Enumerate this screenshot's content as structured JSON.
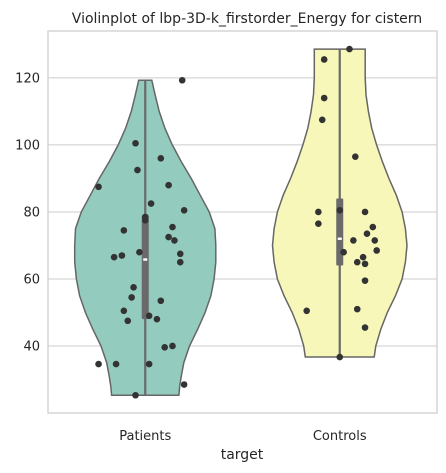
{
  "chart_data": {
    "type": "violin",
    "title": "Violinplot of lbp-3D-k_firstorder_Energy for cistern",
    "xlabel": "target",
    "ylabel": "",
    "ylim": [
      20,
      134
    ],
    "yticks": [
      40,
      60,
      80,
      100,
      120
    ],
    "grid": true,
    "categories": [
      "Patients",
      "Controls"
    ],
    "colors": [
      "#94cbbf",
      "#f7f7b9"
    ],
    "series": [
      {
        "category": "Patients",
        "min": 25.3,
        "max": 119.3,
        "q1": 48,
        "median": 65.8,
        "q3": 79,
        "density": [
          [
            25.3,
            41
          ],
          [
            28,
            42
          ],
          [
            31,
            44
          ],
          [
            35,
            47
          ],
          [
            40,
            54
          ],
          [
            45,
            64
          ],
          [
            50,
            73
          ],
          [
            55,
            80
          ],
          [
            60,
            84
          ],
          [
            65,
            86
          ],
          [
            70,
            86
          ],
          [
            75,
            85
          ],
          [
            80,
            78
          ],
          [
            85,
            67
          ],
          [
            90,
            56
          ],
          [
            95,
            44
          ],
          [
            100,
            33
          ],
          [
            105,
            24
          ],
          [
            110,
            17
          ],
          [
            115,
            12
          ],
          [
            119.3,
            8
          ]
        ],
        "points": [
          [
            -0.05,
            25.3
          ],
          [
            -0.24,
            34.6
          ],
          [
            -0.15,
            34.6
          ],
          [
            0.02,
            34.6
          ],
          [
            0.2,
            28.5
          ],
          [
            0.1,
            39.6
          ],
          [
            0.14,
            40
          ],
          [
            0.06,
            48
          ],
          [
            -0.09,
            47.5
          ],
          [
            0.02,
            49
          ],
          [
            -0.11,
            50.5
          ],
          [
            -0.07,
            54.5
          ],
          [
            0.08,
            53.5
          ],
          [
            -0.06,
            57.5
          ],
          [
            -0.16,
            66.5
          ],
          [
            -0.12,
            67
          ],
          [
            0.18,
            65
          ],
          [
            0.18,
            67.5
          ],
          [
            -0.03,
            68
          ],
          [
            0.15,
            71.5
          ],
          [
            0.12,
            72.5
          ],
          [
            -0.11,
            74.5
          ],
          [
            0.14,
            75.5
          ],
          [
            0.0,
            77.5
          ],
          [
            0.0,
            78.5
          ],
          [
            0.2,
            80.5
          ],
          [
            0.03,
            82.5
          ],
          [
            -0.24,
            87.5
          ],
          [
            0.12,
            88
          ],
          [
            -0.04,
            92.5
          ],
          [
            0.08,
            96
          ],
          [
            -0.05,
            100.5
          ],
          [
            0.19,
            119.3
          ]
        ]
      },
      {
        "category": "Controls",
        "min": 36.7,
        "max": 128.6,
        "q1": 64,
        "median": 72,
        "q3": 84,
        "density": [
          [
            36.7,
            42
          ],
          [
            40,
            44
          ],
          [
            45,
            50
          ],
          [
            50,
            58
          ],
          [
            55,
            68
          ],
          [
            60,
            76
          ],
          [
            65,
            80
          ],
          [
            70,
            82
          ],
          [
            75,
            80
          ],
          [
            80,
            76
          ],
          [
            85,
            69
          ],
          [
            90,
            60
          ],
          [
            95,
            52
          ],
          [
            100,
            45
          ],
          [
            105,
            39
          ],
          [
            110,
            35
          ],
          [
            115,
            32
          ],
          [
            120,
            31
          ],
          [
            125,
            31
          ],
          [
            128.6,
            31
          ]
        ],
        "points": [
          [
            0.0,
            36.7
          ],
          [
            0.13,
            45.5
          ],
          [
            -0.17,
            50.5
          ],
          [
            0.09,
            51
          ],
          [
            0.13,
            59.5
          ],
          [
            0.13,
            64.5
          ],
          [
            0.09,
            65
          ],
          [
            0.12,
            66.5
          ],
          [
            0.02,
            68
          ],
          [
            0.19,
            68.5
          ],
          [
            0.07,
            71.5
          ],
          [
            0.18,
            71.5
          ],
          [
            0.14,
            73.5
          ],
          [
            0.17,
            75.5
          ],
          [
            -0.11,
            76.5
          ],
          [
            -0.11,
            80
          ],
          [
            0.13,
            80
          ],
          [
            0.0,
            80.5
          ],
          [
            0.08,
            96.5
          ],
          [
            -0.09,
            107.5
          ],
          [
            -0.08,
            114
          ],
          [
            -0.08,
            125.5
          ],
          [
            0.05,
            128.6
          ]
        ]
      }
    ]
  }
}
